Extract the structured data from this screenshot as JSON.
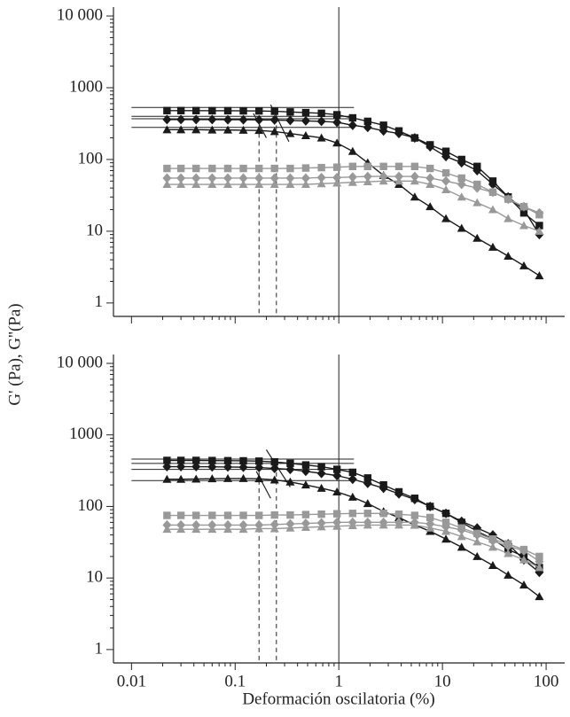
{
  "chart_data": [
    {
      "type": "scatter",
      "y_label": "G' (Pa), G''(Pa)",
      "log_x": true,
      "log_y": true,
      "xlim": [
        0.0067,
        151
      ],
      "ylim": [
        0.65,
        13300
      ],
      "xticks": [
        0.01,
        0.1,
        1,
        10,
        100
      ],
      "yticks": [
        {
          "value": 10000,
          "label": "10 000"
        },
        1000,
        100,
        10,
        1
      ],
      "x": [
        0.022,
        0.03,
        0.042,
        0.06,
        0.085,
        0.12,
        0.17,
        0.24,
        0.34,
        0.48,
        0.68,
        0.96,
        1.36,
        1.9,
        2.7,
        3.8,
        5.4,
        7.6,
        10.8,
        15.3,
        21.6,
        30.6,
        43,
        61,
        86
      ],
      "series": [
        {
          "marker": "square",
          "color": "#1a1a1a",
          "values": [
            480,
            480,
            480,
            478,
            478,
            476,
            475,
            470,
            460,
            450,
            440,
            420,
            380,
            340,
            300,
            250,
            200,
            160,
            130,
            100,
            80,
            50,
            30,
            18,
            12
          ]
        },
        {
          "marker": "diamond",
          "color": "#1a1a1a",
          "values": [
            360,
            360,
            360,
            360,
            358,
            358,
            356,
            355,
            350,
            345,
            340,
            330,
            300,
            280,
            250,
            230,
            200,
            150,
            110,
            90,
            70,
            45,
            30,
            20,
            9
          ]
        },
        {
          "marker": "triangle",
          "color": "#1a1a1a",
          "values": [
            260,
            260,
            260,
            258,
            258,
            256,
            254,
            245,
            230,
            215,
            200,
            170,
            130,
            90,
            60,
            45,
            30,
            22,
            15,
            11,
            8,
            6,
            4.5,
            3.3,
            2.4
          ]
        },
        {
          "marker": "square",
          "color": "#999999",
          "values": [
            75,
            75,
            75,
            75,
            75,
            75,
            75,
            75,
            75,
            76,
            77,
            78,
            80,
            80,
            80,
            80,
            80,
            75,
            65,
            55,
            45,
            35,
            28,
            22,
            17
          ]
        },
        {
          "marker": "diamond",
          "color": "#999999",
          "values": [
            55,
            55,
            55,
            55,
            55,
            55,
            55,
            55,
            55,
            55,
            56,
            56,
            57,
            58,
            58,
            58,
            58,
            55,
            50,
            45,
            40,
            35,
            28,
            22,
            18
          ]
        },
        {
          "marker": "triangle",
          "color": "#999999",
          "values": [
            45,
            45,
            45,
            45,
            45,
            45,
            45,
            45,
            45,
            45,
            46,
            47,
            48,
            49,
            50,
            50,
            50,
            45,
            38,
            30,
            25,
            20,
            15,
            12,
            10
          ]
        }
      ],
      "h_lines": [
        530,
        400,
        370,
        280
      ],
      "h_line_range": [
        0.01,
        1.4
      ],
      "v_line": 1,
      "dashed_lines": [
        0.17,
        0.25
      ],
      "dashed_top": 300,
      "slashes": [
        [
          0.22,
          580,
          0.33,
          177
        ],
        [
          0.15,
          440,
          0.2,
          200
        ]
      ]
    },
    {
      "type": "scatter",
      "x_label": "Deformación oscilatoria (%)",
      "log_x": true,
      "log_y": true,
      "xlim": [
        0.0067,
        151
      ],
      "ylim": [
        0.65,
        13300
      ],
      "xticks": [
        0.01,
        0.1,
        1,
        10,
        100
      ],
      "yticks": [
        {
          "value": 10000,
          "label": "10 000"
        },
        1000,
        100,
        10,
        1
      ],
      "x": [
        0.022,
        0.03,
        0.042,
        0.06,
        0.085,
        0.12,
        0.17,
        0.24,
        0.34,
        0.48,
        0.68,
        0.96,
        1.36,
        1.9,
        2.7,
        3.8,
        5.4,
        7.6,
        10.8,
        15.3,
        21.6,
        30.6,
        43,
        61,
        86
      ],
      "series": [
        {
          "marker": "square",
          "color": "#1a1a1a",
          "values": [
            440,
            440,
            440,
            438,
            436,
            434,
            430,
            420,
            400,
            380,
            360,
            330,
            300,
            250,
            200,
            160,
            130,
            100,
            80,
            60,
            45,
            35,
            25,
            20,
            14
          ]
        },
        {
          "marker": "diamond",
          "color": "#1a1a1a",
          "values": [
            360,
            360,
            360,
            358,
            356,
            354,
            350,
            340,
            330,
            310,
            290,
            270,
            240,
            210,
            180,
            150,
            125,
            100,
            80,
            62,
            50,
            40,
            30,
            18,
            12
          ]
        },
        {
          "marker": "triangle",
          "color": "#1a1a1a",
          "values": [
            240,
            240,
            242,
            244,
            246,
            246,
            244,
            235,
            220,
            200,
            180,
            160,
            135,
            110,
            85,
            70,
            55,
            45,
            35,
            27,
            20,
            15,
            11,
            8,
            5.5
          ]
        },
        {
          "marker": "square",
          "color": "#999999",
          "values": [
            75,
            75,
            75,
            75,
            75,
            75,
            75,
            76,
            76,
            77,
            78,
            79,
            80,
            80,
            80,
            78,
            75,
            70,
            60,
            50,
            42,
            35,
            30,
            25,
            20
          ]
        },
        {
          "marker": "diamond",
          "color": "#999999",
          "values": [
            55,
            55,
            55,
            55,
            55,
            55,
            55,
            56,
            57,
            58,
            59,
            60,
            60,
            60,
            60,
            60,
            60,
            57,
            52,
            47,
            40,
            33,
            28,
            24,
            17
          ]
        },
        {
          "marker": "triangle",
          "color": "#999999",
          "values": [
            48,
            48,
            48,
            48,
            48,
            48,
            49,
            49,
            50,
            51,
            52,
            53,
            54,
            55,
            55,
            55,
            55,
            50,
            45,
            38,
            32,
            27,
            22,
            18,
            14
          ]
        }
      ],
      "h_lines": [
        460,
        400,
        330,
        230
      ],
      "h_line_range": [
        0.01,
        1.4
      ],
      "v_line": 1,
      "dashed_lines": [
        0.17,
        0.25
      ],
      "dashed_top": 300,
      "slashes": [
        [
          0.2,
          620,
          0.34,
          187
        ],
        [
          0.16,
          310,
          0.22,
          130
        ]
      ]
    }
  ]
}
